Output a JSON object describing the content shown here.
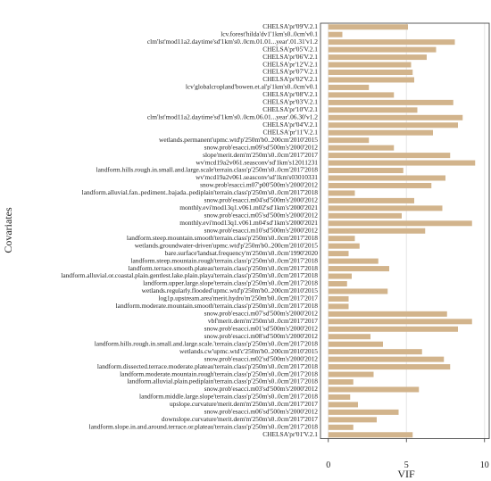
{
  "chart_data": {
    "type": "barh",
    "xlabel": "VIF",
    "ylabel": "Covariates",
    "color": "#d2b48c",
    "grid": true,
    "xlim": [
      -0.5,
      10.3
    ],
    "xticks": [
      0,
      5,
      10
    ],
    "categories": [
      "CHELSA'pr'09'V.2.1",
      "lcv.forest'hilda'dv1'1km's0..0cm'v0.1",
      "clm'lst'mod11a2.daytime'sd'1km's0..0cm.01.01...year'.01.31'v1.2",
      "CHELSA'pr'05'V.2.1",
      "CHELSA'pr'06'V.2.1",
      "CHELSA'pr'12'V.2.1",
      "CHELSA'pr'07'V.2.1",
      "CHELSA'pr'02'V.2.1",
      "lcv'globalcropland'bowen.et.al'p'1km's0..0cm'v0.1",
      "CHELSA'pr'08'V.2.1",
      "CHELSA'pr'03'V.2.1",
      "CHELSA'pr'10'V.2.1",
      "clm'lst'mod11a2.daytime'sd'1km's0..0cm.06.01...year'.06.30'v1.2",
      "CHELSA'pr'04'V.2.1",
      "CHELSA'pr'11'V.2.1",
      "wetlands.permanent'upmc.wtd'p'250m'b0..200cm'2010'2015",
      "snow.prob'esacci.m09'sd'500m's'2000'2012",
      "slope'merit.dem'm'250m's0..0cm'2017'2017",
      "wv'mcd19a2v061.seasconv'sd'1km's12011231",
      "landform.hills.rough.in.small.and.large.scale'terrain.class'p'250m's0..0cm'2017'2018",
      "wv'mcd19a2v061.seasconv'sd'1km's03010331",
      "snow.prob'esacci.m07'p00'500m's'2000'2012",
      "landform.alluvial.fan..pediment..bajada..pediplain'terrain.class'p'250m's0..0cm'2017'2018",
      "snow.prob'esacci.m04'sd'500m's'2000'2012",
      "monthly.evi'mod13q1.v061.m02'sd'1km's'2000'2021",
      "snow.prob'esacci.m05'sd'500m's'2000'2012",
      "monthly.evi'mod13q1.v061.m04'sd'1km's'2000'2021",
      "snow.prob'esacci.m10'sd'500m's'2000'2012",
      "landform.steep.mountain.smooth'terrain.class'p'250m's0..0cm'2017'2018",
      "wetlands.groundwater-driven'upmc.wtd'p'250m'b0..200cm'2010'2015",
      "bare.surface'landsat.frequency'm'250m's0..0cm'1990'2020",
      "landform.steep.mountain.rough'terrain.class'p'250m's0..0cm'2017'2018",
      "landform.terrace.smooth.plateau'terrain.class'p'250m's0..0cm'2017'2018",
      "landform.alluvial.or.coastal.plain.gentlest.lake.plain.playa'terrain.class'p'250m's0..0cm'2017'2018",
      "landform.upper.large.slope'terrain.class'p'250m's0..0cm'2017'2018",
      "wetlands.regularly.flooded'upmc.wtd'p'250m'b0..200cm'2010'2015",
      "log1p.upstream.area'merit.hydro'm'250m'b0..0cm'2017'2017",
      "landform.moderate.mountain.smooth'terrain.class'p'250m's0..0cm'2017'2018",
      "snow.prob'esacci.m07'sd'500m's'2000'2012",
      "vbf'merit.dem'm'250m's0..0cm'2017'2017",
      "snow.prob'esacci.m01'sd'500m's'2000'2012",
      "snow.prob'esacci.m08'sd'500m's'2000'2012",
      "landform.hills.rough.in.small.and.large.scale.'terrain.class'p'250m's0..0cm'2017'2018",
      "wetlands.cw'upmc.wtd'c'250m'b0..200cm'2010'2015",
      "snow.prob'esacci.m02'sd'500m's'2000'2012",
      "landform.dissected.terrace.moderate.plateau'terrain.class'p'250m's0..0cm'2017'2018",
      "landform.moderate.mountain.rough'terrain.class'p'250m's0..0cm'2017'2018",
      "landform.alluvial.plain.pediplain'terrain.class'p'250m's0..0cm'2017'2018",
      "snow.prob'esacci.m03'sd'500m's'2000'2012",
      "landform.middle.large.slope'terrain.class'p'250m's0..0cm'2017'2018",
      "upslope.curvature'merit.dem'm'250m's0..0cm'2017'2017",
      "snow.prob'esacci.m06'sd'500m's'2000'2012",
      "downslope.curvature'merit.dem'm'250m's0..0cm'2017'2017",
      "landform.slope.in.and.around.terrace.or.plateau'terrain.class'p'250m's0..0cm'2017'2018",
      "CHELSA'pr'01'V.2.1"
    ],
    "values": [
      5.1,
      0.9,
      8.1,
      6.9,
      6.3,
      5.3,
      5.4,
      5.5,
      2.6,
      4.2,
      8.0,
      5.7,
      8.6,
      8.3,
      6.7,
      2.6,
      4.2,
      7.8,
      9.4,
      4.8,
      7.5,
      6.6,
      1.7,
      5.5,
      7.3,
      4.7,
      9.2,
      6.2,
      1.7,
      2.0,
      1.3,
      3.2,
      3.9,
      1.5,
      1.2,
      3.8,
      1.3,
      1.3,
      7.6,
      9.2,
      8.3,
      2.7,
      3.5,
      6.0,
      7.4,
      7.8,
      2.9,
      1.6,
      5.8,
      1.4,
      1.9,
      4.5,
      3.1,
      1.6,
      5.4
    ]
  }
}
